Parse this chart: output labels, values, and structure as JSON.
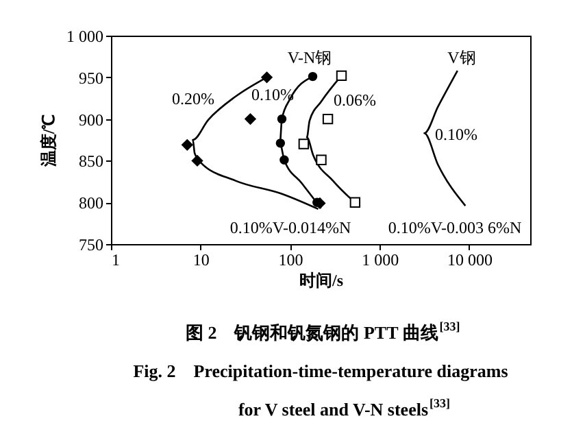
{
  "chart_data": {
    "type": "line",
    "title": "图 2　钒钢和钒氮钢的 PTT 曲线$^{[33]}$",
    "subtitle": [
      "Fig. 2　Precipitation-time-temperature diagrams",
      "for V steel and V-N steels$^{[33]}$"
    ],
    "xlabel": "时间/s",
    "ylabel": "温度/℃",
    "log": "x",
    "grid": false,
    "xlim": [
      1,
      48000
    ],
    "xticks": [
      1,
      10,
      100,
      {
        "value": 1000,
        "label": "1 000"
      },
      {
        "value": 10000,
        "label": "10 000"
      }
    ],
    "ylim": [
      750,
      1000
    ],
    "yticks": [
      750,
      800,
      850,
      900,
      950,
      {
        "value": 1000,
        "label": "1 000"
      }
    ],
    "series": [
      {
        "color": "#000000",
        "x": [
          55,
          24.6,
          12.2,
          8.2,
          8.6,
          10,
          24.6,
          82,
          206
        ],
        "values": [
          950,
          927,
          899,
          875,
          859,
          848,
          826,
          810,
          792
        ]
      },
      {
        "color": "#000000",
        "x": [
          179,
          100,
          81,
          77,
          86,
          135,
          222
        ],
        "values": [
          951,
          924,
          900,
          871,
          851,
          823,
          793
        ]
      },
      {
        "color": "#000000",
        "x": [
          375,
          223,
          165,
          154,
          182,
          301,
          594
        ],
        "values": [
          952,
          921,
          898,
          878,
          856,
          826,
          795
        ]
      },
      {
        "color": "#000000",
        "x": [
          7400,
          4490,
          3160,
          4490,
          9060
        ],
        "values": [
          958,
          915,
          883,
          845,
          796
        ]
      },
      {
        "type": "scatter",
        "marker": "diamond",
        "color": "#000000",
        "x": [
          55,
          36,
          7.1,
          9.2,
          215
        ],
        "values": [
          950,
          900,
          869,
          850,
          799
        ]
      },
      {
        "type": "scatter",
        "marker": "circle",
        "color": "#000000",
        "x": [
          179,
          81,
          78,
          86,
          200
        ],
        "values": [
          951,
          900,
          871,
          851,
          800
        ]
      },
      {
        "type": "scatter",
        "marker": "square",
        "color": "#000000",
        "x": [
          375,
          264,
          142,
          223,
          532
        ],
        "values": [
          952,
          900,
          870,
          851,
          800
        ]
      }
    ],
    "annotations": [
      "V-N钢",
      "V钢",
      "0.20%",
      "0.10%",
      "0.06%",
      "0.10%",
      "0.10%V-0.014%N",
      "0.10%V-0.003 6%N"
    ]
  }
}
